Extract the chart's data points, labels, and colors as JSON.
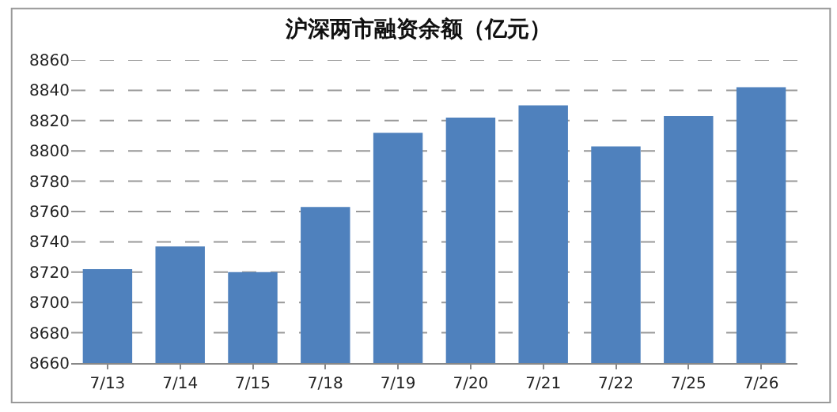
{
  "chart_data": {
    "type": "bar",
    "title": "沪深两市融资余额（亿元）",
    "categories": [
      "7/13",
      "7/14",
      "7/15",
      "7/18",
      "7/19",
      "7/20",
      "7/21",
      "7/22",
      "7/25",
      "7/26"
    ],
    "values": [
      8722,
      8737,
      8720,
      8763,
      8812,
      8822,
      8830,
      8803,
      8823,
      8842
    ],
    "color": "#4f81bd",
    "ylim": [
      8660,
      8860
    ],
    "yticks": [
      8660,
      8680,
      8700,
      8720,
      8740,
      8760,
      8780,
      8800,
      8820,
      8840,
      8860
    ],
    "grid": "y"
  }
}
